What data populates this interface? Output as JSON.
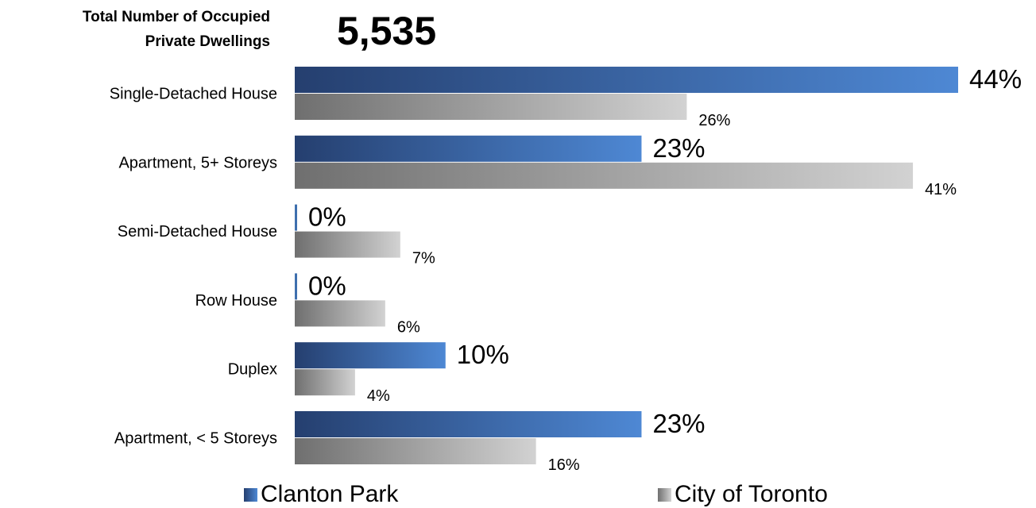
{
  "header": {
    "label_line1": "Total Number of Occupied",
    "label_line2": "Private Dwellings",
    "total": "5,535"
  },
  "chart_data": {
    "type": "bar",
    "orientation": "horizontal",
    "categories": [
      "Single-Detached House",
      "Apartment, 5+ Storeys",
      "Semi-Detached House",
      "Row House",
      "Duplex",
      "Apartment, < 5 Storeys"
    ],
    "series": [
      {
        "name": "Clanton Park",
        "values": [
          44,
          23,
          0,
          0,
          10,
          23
        ],
        "labels": [
          "44%",
          "23%",
          "0%",
          "0%",
          "10%",
          "23%"
        ],
        "color_start": "#253f6f",
        "color_end": "#4e88d4"
      },
      {
        "name": "City of Toronto",
        "values": [
          26,
          41,
          7,
          6,
          4,
          16
        ],
        "labels": [
          "26%",
          "41%",
          "7%",
          "6%",
          "4%",
          "16%"
        ],
        "color_start": "#6f6f6f",
        "color_end": "#d2d2d2"
      }
    ],
    "value_unit": "%",
    "xlim": [
      0,
      44
    ],
    "grid": false,
    "legend_position": "bottom"
  }
}
